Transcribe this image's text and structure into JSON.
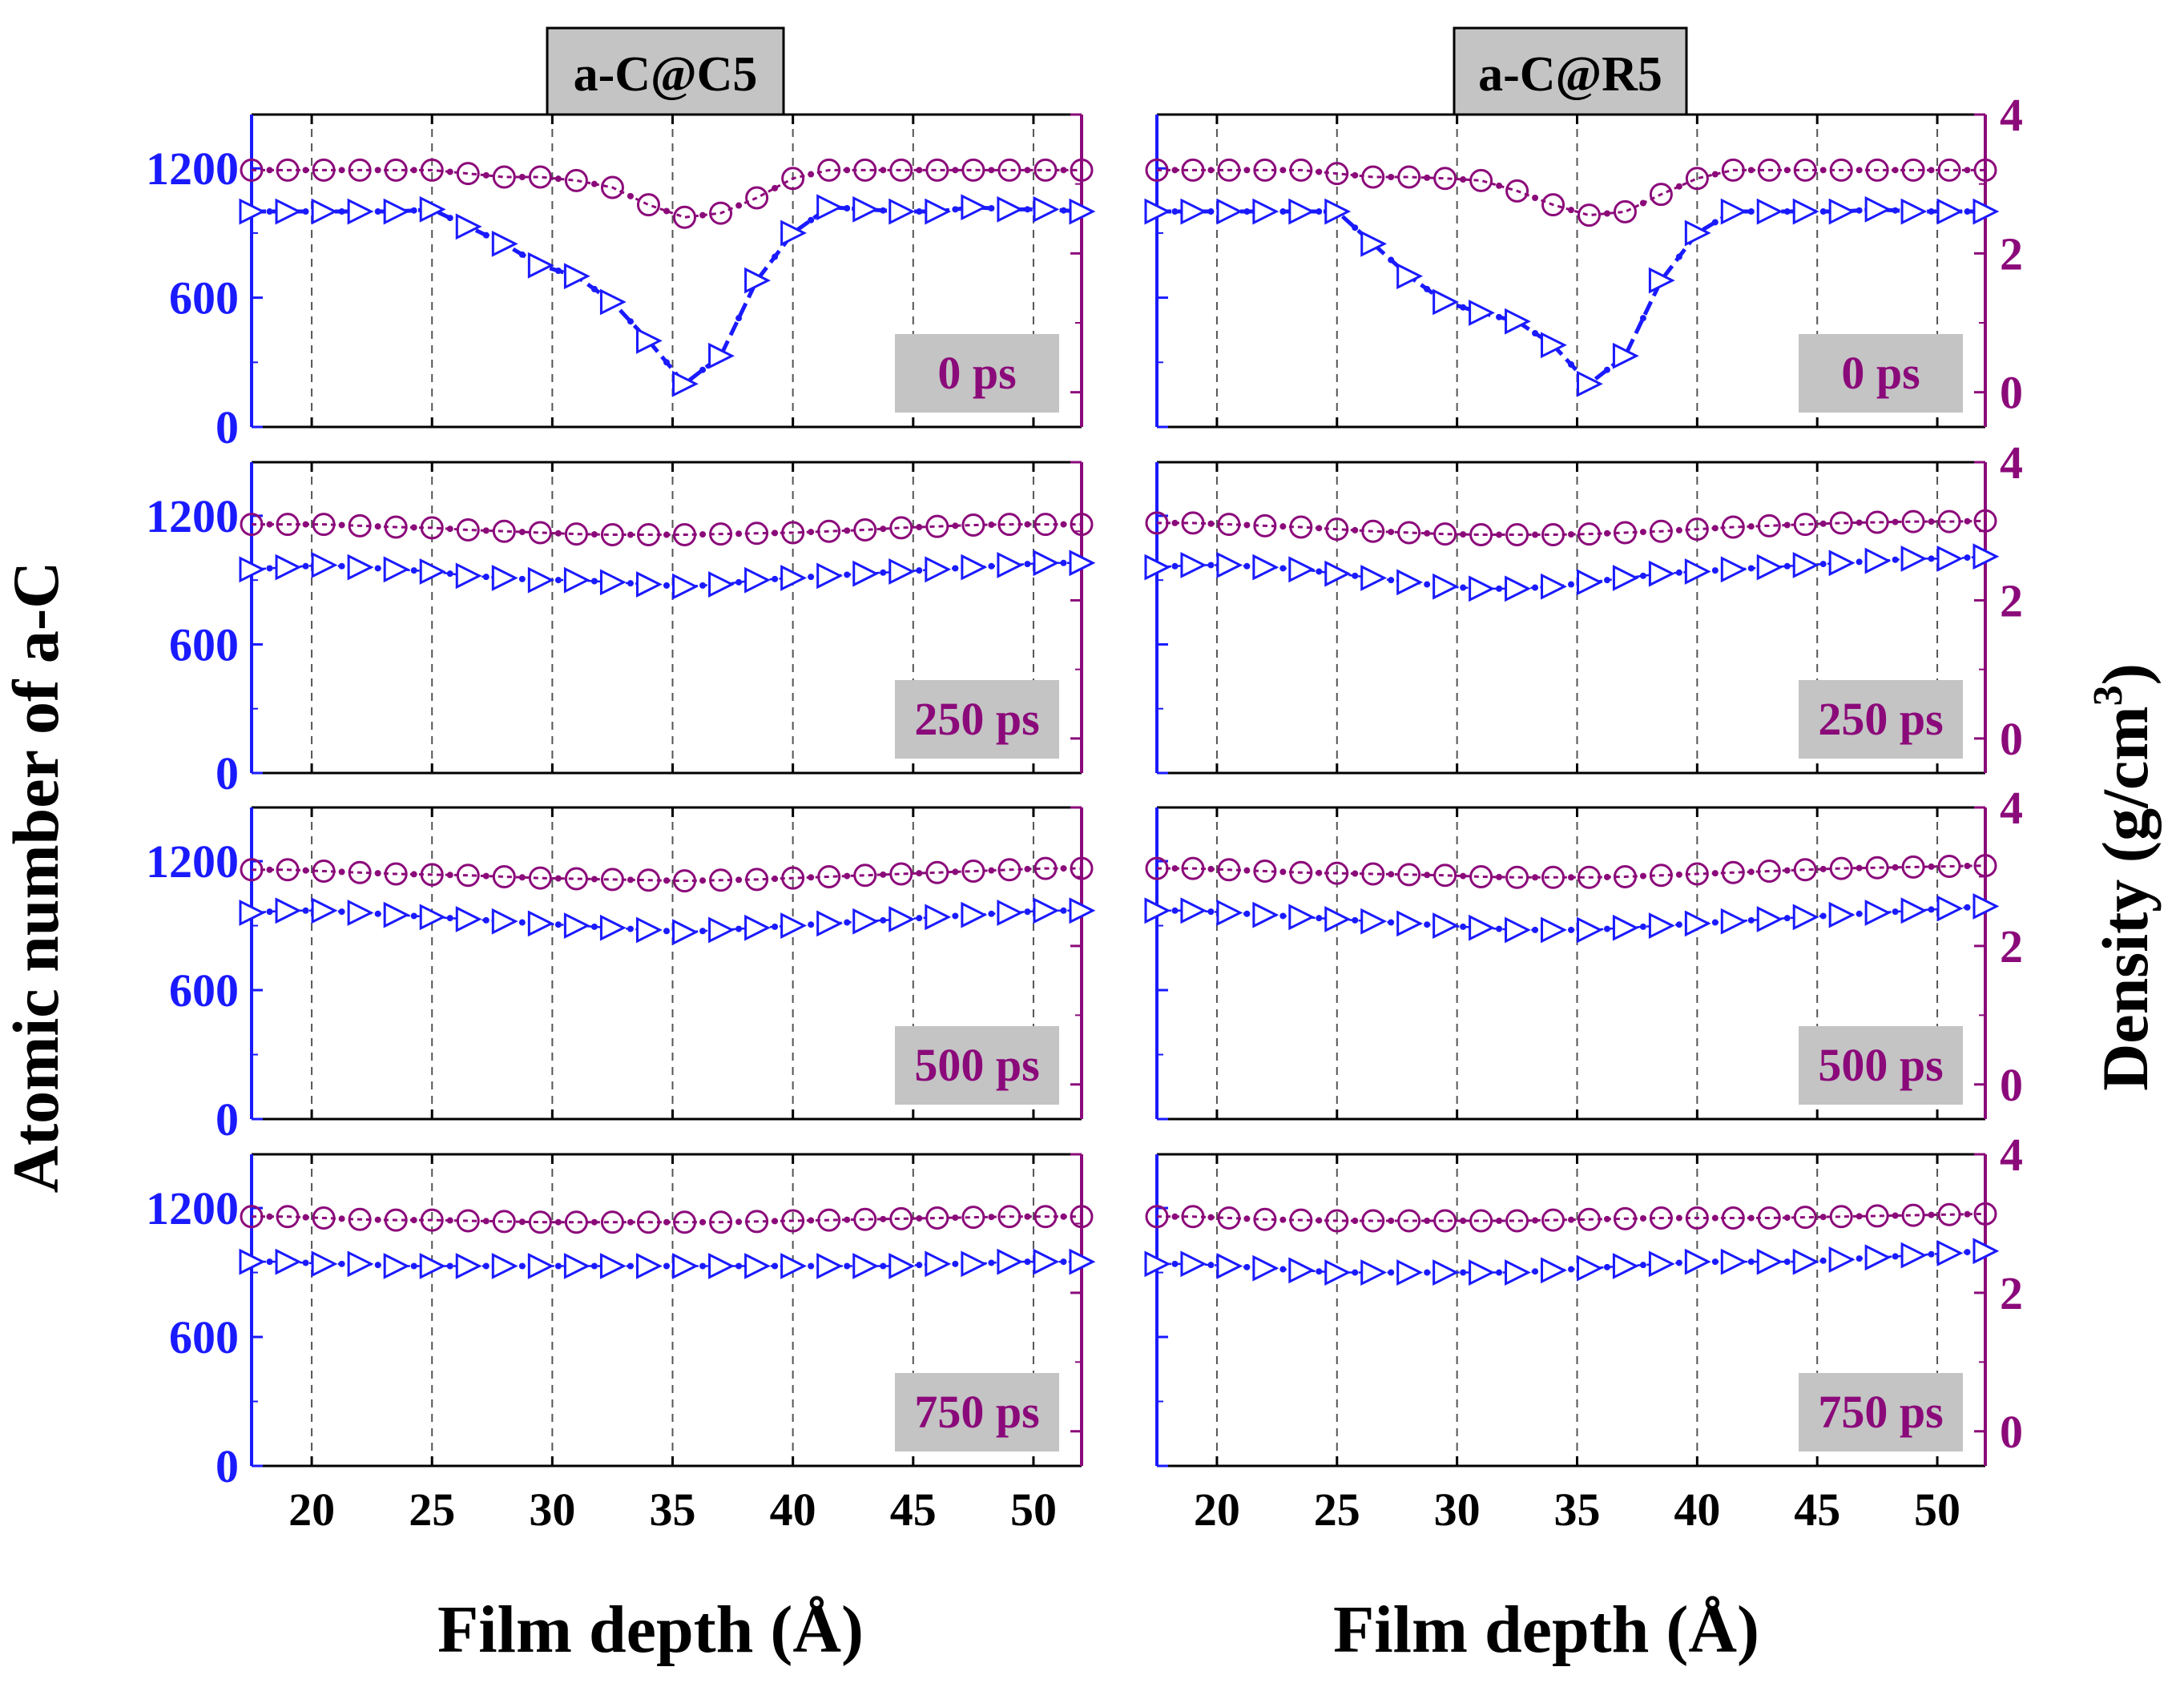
{
  "figure": {
    "left_ylabel": "Atomic number of a-C",
    "right_ylabel_main": "Density (g/cm",
    "right_ylabel_sup": "3",
    "right_ylabel_close": ")",
    "xlabel": "Film depth (Å)",
    "colors": {
      "atoms": "#1a1aff",
      "density": "#8b0a7a",
      "grid": "#555555",
      "label_box": "#c4c4c4",
      "frame": "#000000"
    }
  },
  "chart_data": [
    {
      "column": "left",
      "title": "a-C@C5",
      "type": "line",
      "xlabel": "Film depth (Å)",
      "xlim": [
        17.5,
        52
      ],
      "xticks": [
        20,
        25,
        30,
        35,
        40,
        45,
        50
      ],
      "ylim_left": [
        0,
        1450
      ],
      "yticks_left": [
        0,
        600,
        1200
      ],
      "ylim_right": [
        -0.5,
        4
      ],
      "yticks_right": [
        0,
        2,
        4
      ],
      "panels": [
        {
          "time_label": "0 ps",
          "x": [
            17.5,
            19,
            20.5,
            22,
            23.5,
            25,
            26.5,
            28,
            29.5,
            31,
            32.5,
            34,
            35.5,
            37,
            38.5,
            40,
            41.5,
            43,
            44.5,
            46,
            47.5,
            49,
            50.5,
            52
          ],
          "atoms": [
            1000,
            1000,
            1000,
            1000,
            1000,
            1010,
            930,
            850,
            750,
            700,
            580,
            400,
            200,
            330,
            680,
            900,
            1020,
            1010,
            1000,
            1000,
            1020,
            1010,
            1010,
            1000
          ],
          "density": [
            3.2,
            3.2,
            3.2,
            3.2,
            3.2,
            3.2,
            3.15,
            3.1,
            3.1,
            3.05,
            2.95,
            2.7,
            2.52,
            2.58,
            2.8,
            3.08,
            3.2,
            3.2,
            3.2,
            3.2,
            3.2,
            3.2,
            3.2,
            3.2
          ]
        },
        {
          "time_label": "250 ps",
          "x": [
            17.5,
            19,
            20.5,
            22,
            23.5,
            25,
            26.5,
            28,
            29.5,
            31,
            32.5,
            34,
            35.5,
            37,
            38.5,
            40,
            41.5,
            43,
            44.5,
            46,
            47.5,
            49,
            50.5,
            52
          ],
          "atoms": [
            950,
            960,
            970,
            960,
            950,
            940,
            920,
            910,
            900,
            900,
            890,
            880,
            870,
            880,
            900,
            910,
            920,
            930,
            940,
            950,
            960,
            970,
            980,
            980
          ],
          "density": [
            3.1,
            3.1,
            3.1,
            3.08,
            3.06,
            3.05,
            3.02,
            3.0,
            2.98,
            2.96,
            2.95,
            2.95,
            2.95,
            2.96,
            2.97,
            2.98,
            3.0,
            3.02,
            3.05,
            3.07,
            3.09,
            3.1,
            3.1,
            3.1
          ]
        },
        {
          "time_label": "500 ps",
          "x": [
            17.5,
            19,
            20.5,
            22,
            23.5,
            25,
            26.5,
            28,
            29.5,
            31,
            32.5,
            34,
            35.5,
            37,
            38.5,
            40,
            41.5,
            43,
            44.5,
            46,
            47.5,
            49,
            50.5,
            52
          ],
          "atoms": [
            960,
            970,
            970,
            960,
            950,
            940,
            930,
            920,
            910,
            900,
            890,
            880,
            870,
            880,
            890,
            900,
            910,
            920,
            930,
            940,
            950,
            960,
            970,
            970
          ],
          "density": [
            3.1,
            3.1,
            3.08,
            3.06,
            3.04,
            3.03,
            3.02,
            3.0,
            2.98,
            2.97,
            2.96,
            2.95,
            2.94,
            2.95,
            2.96,
            2.98,
            3.0,
            3.02,
            3.04,
            3.06,
            3.08,
            3.1,
            3.12,
            3.12
          ]
        },
        {
          "time_label": "750 ps",
          "x": [
            17.5,
            19,
            20.5,
            22,
            23.5,
            25,
            26.5,
            28,
            29.5,
            31,
            32.5,
            34,
            35.5,
            37,
            38.5,
            40,
            41.5,
            43,
            44.5,
            46,
            47.5,
            49,
            50.5,
            52
          ],
          "atoms": [
            950,
            950,
            940,
            940,
            930,
            930,
            930,
            930,
            930,
            930,
            930,
            930,
            930,
            930,
            930,
            930,
            930,
            930,
            930,
            940,
            940,
            950,
            950,
            950
          ],
          "density": [
            3.1,
            3.1,
            3.08,
            3.06,
            3.05,
            3.05,
            3.04,
            3.03,
            3.02,
            3.02,
            3.02,
            3.02,
            3.02,
            3.02,
            3.03,
            3.04,
            3.05,
            3.06,
            3.07,
            3.08,
            3.09,
            3.1,
            3.1,
            3.1
          ]
        }
      ]
    },
    {
      "column": "right",
      "title": "a-C@R5",
      "type": "line",
      "xlabel": "Film depth (Å)",
      "xlim": [
        17.5,
        52
      ],
      "xticks": [
        20,
        25,
        30,
        35,
        40,
        45,
        50
      ],
      "ylim_left": [
        0,
        1450
      ],
      "yticks_left": [
        0,
        600,
        1200
      ],
      "ylim_right": [
        -0.5,
        4
      ],
      "yticks_right": [
        0,
        2,
        4
      ],
      "panels": [
        {
          "time_label": "0 ps",
          "x": [
            17.5,
            19,
            20.5,
            22,
            23.5,
            25,
            26.5,
            28,
            29.5,
            31,
            32.5,
            34,
            35.5,
            37,
            38.5,
            40,
            41.5,
            43,
            44.5,
            46,
            47.5,
            49,
            50.5,
            52
          ],
          "atoms": [
            1000,
            1000,
            1000,
            1000,
            1000,
            1000,
            850,
            700,
            580,
            530,
            490,
            380,
            200,
            330,
            680,
            900,
            1000,
            1000,
            1000,
            1000,
            1010,
            1000,
            1000,
            1000
          ],
          "density": [
            3.2,
            3.2,
            3.2,
            3.2,
            3.2,
            3.15,
            3.1,
            3.1,
            3.08,
            3.05,
            2.9,
            2.7,
            2.55,
            2.6,
            2.85,
            3.08,
            3.2,
            3.2,
            3.2,
            3.2,
            3.2,
            3.2,
            3.2,
            3.2
          ]
        },
        {
          "time_label": "250 ps",
          "x": [
            17.5,
            19,
            20.5,
            22,
            23.5,
            25,
            26.5,
            28,
            29.5,
            31,
            32.5,
            34,
            35.5,
            37,
            38.5,
            40,
            41.5,
            43,
            44.5,
            46,
            47.5,
            49,
            50.5,
            52
          ],
          "atoms": [
            960,
            970,
            970,
            960,
            950,
            930,
            910,
            890,
            870,
            860,
            860,
            870,
            890,
            910,
            930,
            940,
            950,
            960,
            970,
            980,
            990,
            1000,
            1000,
            1010
          ],
          "density": [
            3.12,
            3.12,
            3.1,
            3.08,
            3.06,
            3.03,
            3.0,
            2.98,
            2.96,
            2.95,
            2.95,
            2.95,
            2.96,
            2.98,
            3.0,
            3.03,
            3.06,
            3.08,
            3.1,
            3.12,
            3.13,
            3.14,
            3.14,
            3.15
          ]
        },
        {
          "time_label": "500 ps",
          "x": [
            17.5,
            19,
            20.5,
            22,
            23.5,
            25,
            26.5,
            28,
            29.5,
            31,
            32.5,
            34,
            35.5,
            37,
            38.5,
            40,
            41.5,
            43,
            44.5,
            46,
            47.5,
            49,
            50.5,
            52
          ],
          "atoms": [
            970,
            970,
            960,
            950,
            940,
            930,
            920,
            910,
            900,
            890,
            880,
            880,
            880,
            890,
            900,
            910,
            920,
            930,
            940,
            950,
            960,
            970,
            980,
            990
          ],
          "density": [
            3.12,
            3.12,
            3.1,
            3.08,
            3.06,
            3.05,
            3.04,
            3.03,
            3.02,
            3.0,
            2.99,
            2.99,
            2.99,
            3.0,
            3.02,
            3.04,
            3.06,
            3.08,
            3.1,
            3.12,
            3.13,
            3.14,
            3.15,
            3.16
          ]
        },
        {
          "time_label": "750 ps",
          "x": [
            17.5,
            19,
            20.5,
            22,
            23.5,
            25,
            26.5,
            28,
            29.5,
            31,
            32.5,
            34,
            35.5,
            37,
            38.5,
            40,
            41.5,
            43,
            44.5,
            46,
            47.5,
            49,
            50.5,
            52
          ],
          "atoms": [
            940,
            940,
            930,
            920,
            910,
            900,
            900,
            900,
            900,
            900,
            900,
            910,
            920,
            930,
            940,
            950,
            950,
            950,
            950,
            960,
            970,
            980,
            990,
            1000
          ],
          "density": [
            3.1,
            3.1,
            3.08,
            3.06,
            3.05,
            3.04,
            3.04,
            3.04,
            3.04,
            3.04,
            3.04,
            3.05,
            3.06,
            3.07,
            3.08,
            3.08,
            3.08,
            3.08,
            3.09,
            3.1,
            3.11,
            3.12,
            3.13,
            3.14
          ]
        }
      ]
    }
  ]
}
